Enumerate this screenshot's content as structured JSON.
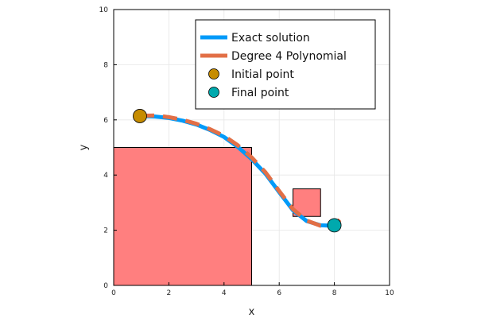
{
  "chart_data": {
    "type": "line",
    "title": "",
    "xlabel": "x",
    "ylabel": "y",
    "xlim": [
      0,
      10
    ],
    "ylim": [
      0,
      10
    ],
    "xticks": [
      0,
      2,
      4,
      6,
      8,
      10
    ],
    "yticks": [
      0,
      2,
      4,
      6,
      8,
      10
    ],
    "grid": true,
    "legend_position": "top-right",
    "obstacles": [
      {
        "x": [
          0,
          5
        ],
        "y": [
          0,
          5
        ],
        "color": "#ff7f7f"
      },
      {
        "x": [
          6.5,
          7.5
        ],
        "y": [
          2.5,
          3.5
        ],
        "color": "#ff7f7f"
      }
    ],
    "series": [
      {
        "name": "Exact solution",
        "kind": "line",
        "color": "#009af9",
        "x": [
          0.95,
          1.5,
          2.0,
          2.5,
          3.0,
          3.5,
          4.0,
          4.5,
          5.0,
          5.5,
          6.0,
          6.5,
          7.0,
          7.5,
          8.0
        ],
        "y": [
          6.14,
          6.12,
          6.07,
          5.97,
          5.83,
          5.63,
          5.38,
          5.02,
          4.58,
          4.05,
          3.38,
          2.72,
          2.33,
          2.18,
          2.16
        ]
      },
      {
        "name": "Degree 4 Polynomial",
        "kind": "dashed-line",
        "color": "#e26f46",
        "x": [
          0.95,
          1.5,
          2.0,
          2.5,
          3.0,
          3.5,
          4.0,
          4.5,
          5.0,
          5.5,
          6.0,
          6.5,
          7.0,
          7.5,
          8.0,
          8.2
        ],
        "y": [
          6.15,
          6.16,
          6.1,
          6.0,
          5.86,
          5.66,
          5.42,
          5.08,
          4.64,
          4.1,
          3.42,
          2.76,
          2.35,
          2.16,
          2.18,
          2.38
        ]
      },
      {
        "name": "Initial point",
        "kind": "marker",
        "color": "#c68c00",
        "x": [
          0.95
        ],
        "y": [
          6.14
        ]
      },
      {
        "name": "Final point",
        "kind": "marker",
        "color": "#00a9ad",
        "x": [
          8.0
        ],
        "y": [
          2.18
        ]
      }
    ]
  }
}
